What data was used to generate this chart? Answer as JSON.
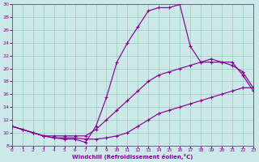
{
  "xlabel": "Windchill (Refroidissement éolien,°C)",
  "bg_color": "#cce8e8",
  "line_color": "#880099",
  "grid_color": "#99ccbb",
  "xlim": [
    0,
    23
  ],
  "ylim": [
    8,
    30
  ],
  "yticks": [
    8,
    10,
    12,
    14,
    16,
    18,
    20,
    22,
    24,
    26,
    28,
    30
  ],
  "xticks": [
    0,
    1,
    2,
    3,
    4,
    5,
    6,
    7,
    8,
    9,
    10,
    11,
    12,
    13,
    14,
    15,
    16,
    17,
    18,
    19,
    20,
    21,
    22,
    23
  ],
  "curve_upper_x": [
    0,
    2,
    3,
    4,
    5,
    6,
    7,
    8,
    9,
    10,
    11,
    12,
    13,
    14,
    15,
    16,
    17,
    18,
    19,
    20,
    21,
    22,
    23
  ],
  "curve_upper_y": [
    11,
    10,
    9.5,
    9.2,
    9.0,
    9.0,
    8.5,
    11.0,
    15.5,
    21.0,
    24.0,
    26.5,
    29.0,
    29.5,
    29.5,
    30.0,
    23.5,
    21.0,
    21.0,
    21.0,
    21.0,
    19.0,
    16.5
  ],
  "curve_mid_x": [
    0,
    1,
    2,
    3,
    4,
    5,
    6,
    7,
    8,
    9,
    10,
    11,
    12,
    13,
    14,
    15,
    16,
    17,
    18,
    19,
    20,
    21,
    22,
    23
  ],
  "curve_mid_y": [
    11,
    10.5,
    10.0,
    9.5,
    9.5,
    9.5,
    9.5,
    9.5,
    10.5,
    12.0,
    13.5,
    15.0,
    16.5,
    18.0,
    19.0,
    19.5,
    20.0,
    20.5,
    21.0,
    21.5,
    21.0,
    20.5,
    19.5,
    17.0
  ],
  "curve_low_x": [
    0,
    1,
    2,
    3,
    4,
    5,
    6,
    7,
    8,
    9,
    10,
    11,
    12,
    13,
    14,
    15,
    16,
    17,
    18,
    19,
    20,
    21,
    22,
    23
  ],
  "curve_low_y": [
    11,
    10.5,
    10.0,
    9.5,
    9.2,
    9.2,
    9.2,
    9.0,
    9.0,
    9.2,
    9.5,
    10.0,
    11.0,
    12.0,
    13.0,
    13.5,
    14.0,
    14.5,
    15.0,
    15.5,
    16.0,
    16.5,
    17.0,
    17.0
  ]
}
